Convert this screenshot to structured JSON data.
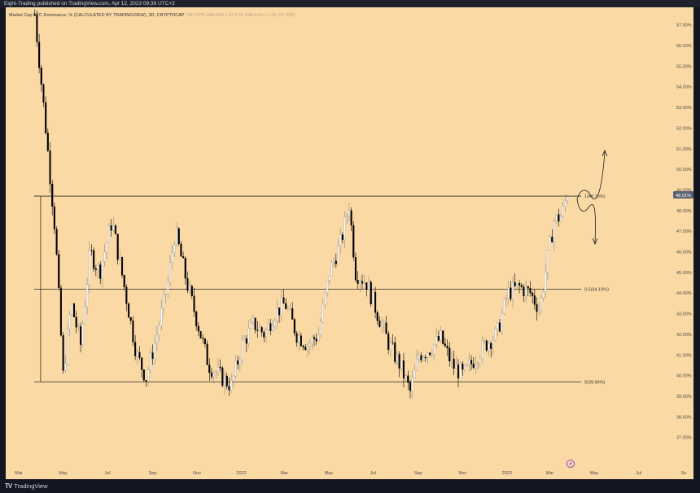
{
  "publisher": "Eight-Trading published on TradingView.com, Apr 12, 2023 09:39 UTC+2",
  "brand": "TradingView",
  "brand_logo": "TV",
  "legend": {
    "symbol": "Market Cap BTC Dominance, % (CALCULATED BY TRADINGVIEW), 3D, CRYPTOCAP",
    "ohlc": "O47.67%  H49.04%  L47.67%  C48.91%  +1.29 (+2.70%)"
  },
  "price_badge": "48.91%",
  "colors": {
    "background": "#fbd9a5",
    "up": "#ffffff",
    "down": "#000000",
    "badge": "#5b6170",
    "lines": "#2b2b2b"
  },
  "icons": [
    "lightning-icon",
    "tradingview-logo-icon"
  ],
  "chart_data": {
    "type": "candlestick",
    "title": "Market Cap BTC Dominance, % (CALCULATED BY TRADINGVIEW), 3D, CRYPTOCAP",
    "ylim": [
      36.0,
      57.5
    ],
    "y_ticks": [
      "37.00%",
      "38.00%",
      "39.00%",
      "40.00%",
      "41.00%",
      "42.00%",
      "43.00%",
      "44.00%",
      "45.00%",
      "46.00%",
      "47.00%",
      "48.00%",
      "49.00%",
      "50.00%",
      "51.00%",
      "52.00%",
      "53.00%",
      "54.00%",
      "55.00%",
      "56.00%",
      "57.00%"
    ],
    "x_ticks": [
      "Mar",
      "May",
      "Jul",
      "Sep",
      "Nov",
      "2022",
      "Mar",
      "May",
      "Jul",
      "Sep",
      "Nov",
      "2023",
      "Mar",
      "May",
      "Jul",
      "Se"
    ],
    "x_range": [
      "2021-03-01",
      "2023-09-01"
    ],
    "levels": [
      {
        "label": "1(48.70%)",
        "value": 48.7
      },
      {
        "label": "0.5(44.19%)",
        "value": 44.19
      },
      {
        "label": "0(39.69%)",
        "value": 39.69
      }
    ],
    "fib_start": "2021-04-18",
    "fib_end": "2023-05-01",
    "close_series": [
      [
        "2021-04-10",
        57.5
      ],
      [
        "2021-04-25",
        52.0
      ],
      [
        "2021-05-08",
        47.0
      ],
      [
        "2021-05-19",
        40.0
      ],
      [
        "2021-05-30",
        43.5
      ],
      [
        "2021-06-12",
        41.5
      ],
      [
        "2021-06-25",
        46.0
      ],
      [
        "2021-07-08",
        45.0
      ],
      [
        "2021-07-25",
        47.5
      ],
      [
        "2021-08-10",
        44.5
      ],
      [
        "2021-08-28",
        41.0
      ],
      [
        "2021-09-10",
        39.9
      ],
      [
        "2021-09-25",
        42.0
      ],
      [
        "2021-10-10",
        44.5
      ],
      [
        "2021-10-20",
        47.0
      ],
      [
        "2021-11-05",
        44.5
      ],
      [
        "2021-11-20",
        42.5
      ],
      [
        "2021-12-05",
        40.5
      ],
      [
        "2021-12-20",
        40.0
      ],
      [
        "2022-01-05",
        39.5
      ],
      [
        "2022-01-20",
        41.5
      ],
      [
        "2022-02-05",
        42.5
      ],
      [
        "2022-02-20",
        42.0
      ],
      [
        "2022-03-05",
        43.0
      ],
      [
        "2022-03-20",
        43.5
      ],
      [
        "2022-04-05",
        42.0
      ],
      [
        "2022-04-20",
        41.5
      ],
      [
        "2022-05-05",
        42.0
      ],
      [
        "2022-05-20",
        45.0
      ],
      [
        "2022-06-05",
        46.5
      ],
      [
        "2022-06-16",
        48.3
      ],
      [
        "2022-06-25",
        45.0
      ],
      [
        "2022-07-10",
        44.5
      ],
      [
        "2022-07-25",
        43.0
      ],
      [
        "2022-08-10",
        41.5
      ],
      [
        "2022-08-25",
        40.5
      ],
      [
        "2022-09-08",
        39.2
      ],
      [
        "2022-09-20",
        41.0
      ],
      [
        "2022-10-05",
        41.3
      ],
      [
        "2022-10-20",
        41.8
      ],
      [
        "2022-11-05",
        40.5
      ],
      [
        "2022-11-20",
        40.0
      ],
      [
        "2022-12-05",
        40.8
      ],
      [
        "2022-12-20",
        41.5
      ],
      [
        "2023-01-05",
        42.0
      ],
      [
        "2023-01-20",
        44.0
      ],
      [
        "2023-02-05",
        44.3
      ],
      [
        "2023-02-20",
        44.0
      ],
      [
        "2023-03-05",
        43.2
      ],
      [
        "2023-03-15",
        45.5
      ],
      [
        "2023-03-25",
        47.5
      ],
      [
        "2023-04-05",
        47.8
      ],
      [
        "2023-04-12",
        48.91
      ]
    ]
  }
}
